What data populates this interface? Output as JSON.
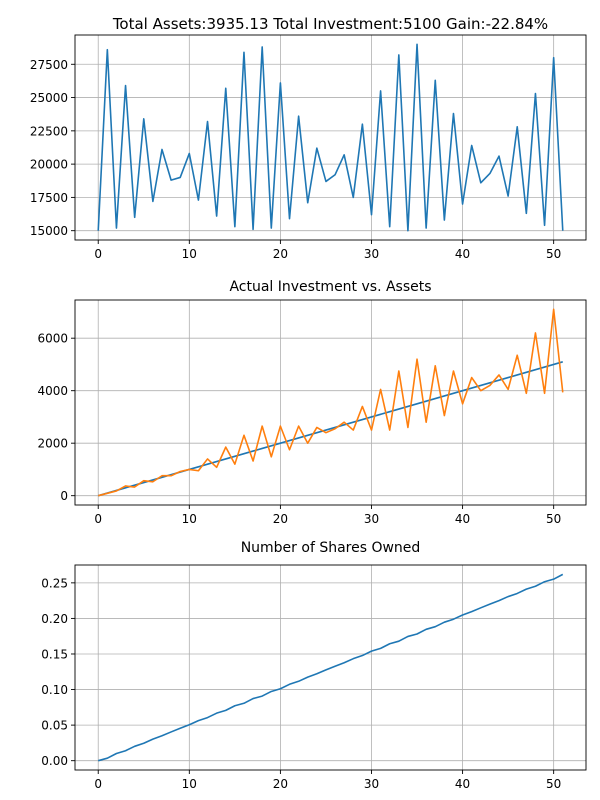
{
  "chart_data": [
    {
      "type": "line",
      "title": "Total Assets:3935.13  Total Investment:5100  Gain:-22.84%",
      "xlabel": "",
      "ylabel": "",
      "xlim": [
        -2.55,
        53.55
      ],
      "ylim": [
        14300,
        29700
      ],
      "xticks": [
        0,
        10,
        20,
        30,
        40,
        50
      ],
      "xtick_labels": [
        "0",
        "10",
        "20",
        "30",
        "40",
        "50"
      ],
      "yticks": [
        15000,
        17500,
        20000,
        22500,
        25000,
        27500
      ],
      "ytick_labels": [
        "15000",
        "17500",
        "20000",
        "22500",
        "25000",
        "27500"
      ],
      "grid": true,
      "series": [
        {
          "color": "#1f77b4",
          "x": [
            0,
            1,
            2,
            3,
            4,
            5,
            6,
            7,
            8,
            9,
            10,
            11,
            12,
            13,
            14,
            15,
            16,
            17,
            18,
            19,
            20,
            21,
            22,
            23,
            24,
            25,
            26,
            27,
            28,
            29,
            30,
            31,
            32,
            33,
            34,
            35,
            36,
            37,
            38,
            39,
            40,
            41,
            42,
            43,
            44,
            45,
            46,
            47,
            48,
            49,
            50,
            51
          ],
          "y": [
            15000,
            28600,
            15200,
            25900,
            16000,
            23400,
            17200,
            21100,
            18800,
            19000,
            20800,
            17300,
            23200,
            16100,
            25700,
            15300,
            28400,
            15100,
            28800,
            15200,
            26100,
            15900,
            23600,
            17100,
            21200,
            18700,
            19200,
            20700,
            17500,
            23000,
            16200,
            25500,
            15300,
            28200,
            15000,
            29000,
            15200,
            26300,
            15800,
            23800,
            17000,
            21400,
            18600,
            19300,
            20600,
            17600,
            22800,
            16300,
            25300,
            15400,
            28000,
            15000
          ]
        }
      ]
    },
    {
      "type": "line",
      "title": "Actual Investment vs. Assets",
      "xlabel": "",
      "ylabel": "",
      "xlim": [
        -2.55,
        53.55
      ],
      "ylim": [
        -355,
        7455
      ],
      "xticks": [
        0,
        10,
        20,
        30,
        40,
        50
      ],
      "xtick_labels": [
        "0",
        "10",
        "20",
        "30",
        "40",
        "50"
      ],
      "yticks": [
        0,
        2000,
        4000,
        6000
      ],
      "ytick_labels": [
        "0",
        "2000",
        "4000",
        "6000"
      ],
      "grid": true,
      "series": [
        {
          "color": "#1f77b4",
          "x": [
            0,
            1,
            2,
            3,
            4,
            5,
            6,
            7,
            8,
            9,
            10,
            11,
            12,
            13,
            14,
            15,
            16,
            17,
            18,
            19,
            20,
            21,
            22,
            23,
            24,
            25,
            26,
            27,
            28,
            29,
            30,
            31,
            32,
            33,
            34,
            35,
            36,
            37,
            38,
            39,
            40,
            41,
            42,
            43,
            44,
            45,
            46,
            47,
            48,
            49,
            50,
            51
          ],
          "y": [
            0,
            100,
            200,
            300,
            400,
            500,
            600,
            700,
            800,
            900,
            1000,
            1100,
            1200,
            1300,
            1400,
            1500,
            1600,
            1700,
            1800,
            1900,
            2000,
            2100,
            2200,
            2300,
            2400,
            2500,
            2600,
            2700,
            2800,
            2900,
            3000,
            3100,
            3200,
            3300,
            3400,
            3500,
            3600,
            3700,
            3800,
            3900,
            4000,
            4100,
            4200,
            4300,
            4400,
            4500,
            4600,
            4700,
            4800,
            4900,
            5000,
            5100
          ]
        },
        {
          "color": "#ff7f0e",
          "x": [
            0,
            1,
            2,
            3,
            4,
            5,
            6,
            7,
            8,
            9,
            10,
            11,
            12,
            13,
            14,
            15,
            16,
            17,
            18,
            19,
            20,
            21,
            22,
            23,
            24,
            25,
            26,
            27,
            28,
            29,
            30,
            31,
            32,
            33,
            34,
            35,
            36,
            37,
            38,
            39,
            40,
            41,
            42,
            43,
            44,
            45,
            46,
            47,
            48,
            49,
            50,
            51
          ],
          "y": [
            0,
            90,
            180,
            370,
            330,
            570,
            530,
            760,
            760,
            920,
            1000,
            950,
            1400,
            1080,
            1850,
            1200,
            2300,
            1320,
            2650,
            1480,
            2650,
            1750,
            2650,
            2000,
            2600,
            2400,
            2550,
            2800,
            2500,
            3400,
            2500,
            4050,
            2500,
            4750,
            2600,
            5200,
            2800,
            4950,
            3050,
            4750,
            3500,
            4500,
            4000,
            4200,
            4600,
            4050,
            5350,
            3900,
            6200,
            3900,
            7100,
            3935.13
          ]
        }
      ]
    },
    {
      "type": "line",
      "title": "Number of Shares Owned",
      "xlabel": "",
      "ylabel": "",
      "xlim": [
        -2.55,
        53.55
      ],
      "ylim": [
        -0.0131,
        0.2751
      ],
      "xticks": [
        0,
        10,
        20,
        30,
        40,
        50
      ],
      "xtick_labels": [
        "0",
        "10",
        "20",
        "30",
        "40",
        "50"
      ],
      "yticks": [
        0,
        0.05,
        0.1,
        0.15,
        0.2,
        0.25
      ],
      "ytick_labels": [
        "0.00",
        "0.05",
        "0.10",
        "0.15",
        "0.20",
        "0.25"
      ],
      "grid": true,
      "series": [
        {
          "color": "#1f77b4",
          "x": [
            0,
            1,
            2,
            3,
            4,
            5,
            6,
            7,
            8,
            9,
            10,
            11,
            12,
            13,
            14,
            15,
            16,
            17,
            18,
            19,
            20,
            21,
            22,
            23,
            24,
            25,
            26,
            27,
            28,
            29,
            30,
            31,
            32,
            33,
            34,
            35,
            36,
            37,
            38,
            39,
            40,
            41,
            42,
            43,
            44,
            45,
            46,
            47,
            48,
            49,
            50,
            51
          ],
          "y": [
            0,
            0.0035,
            0.0101,
            0.014,
            0.0202,
            0.0245,
            0.0303,
            0.035,
            0.0404,
            0.0456,
            0.0505,
            0.0563,
            0.0606,
            0.0668,
            0.0707,
            0.0772,
            0.0807,
            0.0873,
            0.0908,
            0.0973,
            0.1011,
            0.1074,
            0.1116,
            0.1175,
            0.1222,
            0.1276,
            0.1328,
            0.1377,
            0.1434,
            0.1478,
            0.154,
            0.1579,
            0.1644,
            0.168,
            0.1747,
            0.1781,
            0.1847,
            0.1884,
            0.1947,
            0.1989,
            0.2048,
            0.2095,
            0.2149,
            0.2201,
            0.225,
            0.2307,
            0.2351,
            0.2412,
            0.2452,
            0.2516,
            0.2552,
            0.2619
          ]
        }
      ]
    }
  ]
}
